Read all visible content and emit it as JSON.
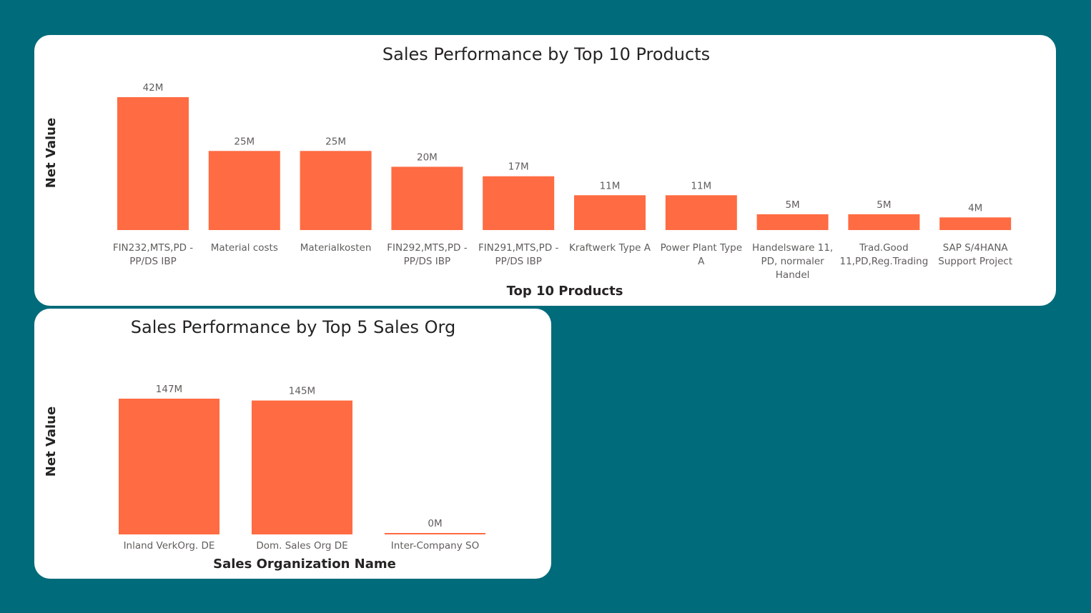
{
  "chart_data": [
    {
      "type": "bar",
      "title": "Sales Performance by Top 10 Products",
      "xlabel": "Top 10 Products",
      "ylabel": "Net Value",
      "categories": [
        [
          "FIN232,MTS,PD -",
          "PP/DS IBP"
        ],
        [
          "Material costs"
        ],
        [
          "Materialkosten"
        ],
        [
          "FIN292,MTS,PD -",
          "PP/DS IBP"
        ],
        [
          "FIN291,MTS,PD -",
          "PP/DS IBP"
        ],
        [
          "Kraftwerk Type A"
        ],
        [
          "Power Plant Type",
          "A"
        ],
        [
          "Handelsware 11,",
          "PD, normaler",
          "Handel"
        ],
        [
          "Trad.Good",
          "11,PD,Reg.Trading"
        ],
        [
          "SAP S/4HANA",
          "Support Project"
        ]
      ],
      "values": [
        42,
        25,
        25,
        20,
        17,
        11,
        11,
        5,
        5,
        4
      ],
      "data_labels": [
        "42M",
        "25M",
        "25M",
        "20M",
        "17M",
        "11M",
        "11M",
        "5M",
        "5M",
        "4M"
      ],
      "value_unit": "M",
      "bar_color": "#FF6B42",
      "grid": false
    },
    {
      "type": "bar",
      "title": "Sales Performance by Top 5 Sales Org",
      "xlabel": "Sales Organization Name",
      "ylabel": "Net Value",
      "categories": [
        [
          "Inland VerkOrg. DE"
        ],
        [
          "Dom. Sales Org DE"
        ],
        [
          "Inter-Company SO"
        ]
      ],
      "values": [
        147,
        145,
        0.2
      ],
      "data_labels": [
        "147M",
        "145M",
        "0M"
      ],
      "value_unit": "M",
      "bar_color": "#FF6B42",
      "grid": false
    }
  ],
  "colors": {
    "background": "#006B7A",
    "card": "#FFFFFF",
    "bar": "#FF6B42",
    "title_text": "#252423",
    "label_text": "#605E5C"
  }
}
